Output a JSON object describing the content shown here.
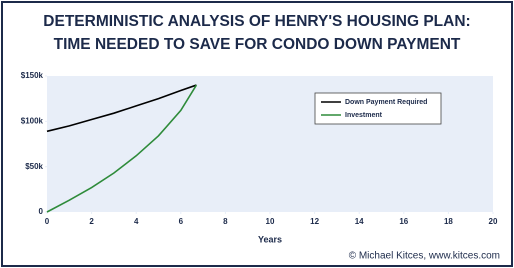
{
  "chart_data": {
    "type": "line",
    "title": [
      "DETERMINISTIC ANALYSIS OF HENRY'S HOUSING PLAN:",
      "TIME NEEDED TO SAVE FOR CONDO DOWN PAYMENT"
    ],
    "x": [
      0,
      1,
      2,
      3,
      4,
      5,
      6,
      6.7
    ],
    "series": [
      {
        "name": "Down Payment Required",
        "color": "#000000",
        "values": [
          89000,
          95000,
          102000,
          109000,
          117000,
          125000,
          134000,
          140000
        ]
      },
      {
        "name": "Investment",
        "color": "#2e8b3a",
        "values": [
          0,
          13000,
          27000,
          43000,
          62000,
          84000,
          112000,
          140000
        ]
      }
    ],
    "xlim": [
      0,
      20
    ],
    "xticks": [
      0,
      2,
      4,
      6,
      8,
      10,
      12,
      14,
      16,
      18,
      20
    ],
    "ylim": [
      0,
      150000
    ],
    "yticks": [
      0,
      {
        "value": 50000,
        "label": "$50k"
      },
      {
        "value": 100000,
        "label": "$100k"
      },
      {
        "value": 150000,
        "label": "$150k"
      }
    ],
    "xlabel": "Years",
    "grid": false,
    "legend": "upper right",
    "credit": "© Michael Kitces, www.kitces.com"
  }
}
